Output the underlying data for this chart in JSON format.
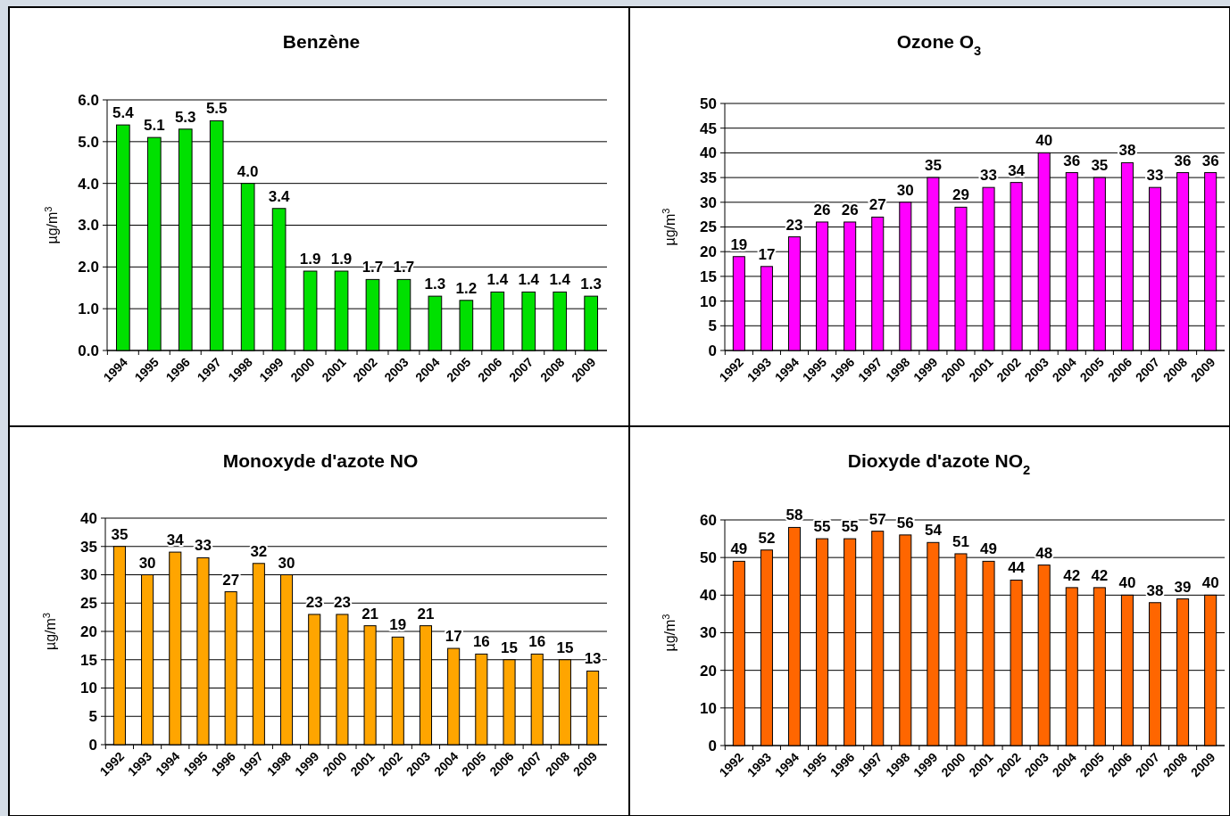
{
  "chart_data": [
    {
      "type": "bar",
      "title": "Benzène",
      "ylabel": "µg/m$^{3}$",
      "categories": [
        "1994",
        "1995",
        "1996",
        "1997",
        "1998",
        "1999",
        "2000",
        "2001",
        "2002",
        "2003",
        "2004",
        "2005",
        "2006",
        "2007",
        "2008",
        "2009"
      ],
      "values": [
        5.4,
        5.1,
        5.3,
        5.5,
        4.0,
        3.4,
        1.9,
        1.9,
        1.7,
        1.7,
        1.3,
        1.2,
        1.4,
        1.4,
        1.4,
        1.3
      ],
      "value_labels": [
        "5.4",
        "5.1",
        "5.3",
        "5.5",
        "4.0",
        "3.4",
        "1.9",
        "1.9",
        "1.7",
        "1.7",
        "1.3",
        "1.2",
        "1.4",
        "1.4",
        "1.4",
        "1.3"
      ],
      "color": "#00e000",
      "ylim": [
        0,
        6
      ],
      "yticks": [
        {
          "value": 0,
          "label": "0.0"
        },
        {
          "value": 1,
          "label": "1.0"
        },
        {
          "value": 2,
          "label": "2.0"
        },
        {
          "value": 3,
          "label": "3.0"
        },
        {
          "value": 4,
          "label": "4.0"
        },
        {
          "value": 5,
          "label": "5.0"
        },
        {
          "value": 6,
          "label": "6.0"
        }
      ],
      "grid": "y"
    },
    {
      "type": "bar",
      "title": "Ozone O$_{3}$",
      "ylabel": "µg/m$^{3}$",
      "categories": [
        "1992",
        "1993",
        "1994",
        "1995",
        "1996",
        "1997",
        "1998",
        "1999",
        "2000",
        "2001",
        "2002",
        "2003",
        "2004",
        "2005",
        "2006",
        "2007",
        "2008",
        "2009"
      ],
      "values": [
        19,
        17,
        23,
        26,
        26,
        27,
        30,
        35,
        29,
        33,
        34,
        40,
        36,
        35,
        38,
        33,
        36,
        36
      ],
      "data_labels": true,
      "color": "#ff00ff",
      "ylim": [
        0,
        50
      ],
      "yticks": [
        0,
        5,
        10,
        15,
        20,
        25,
        30,
        35,
        40,
        45,
        50
      ],
      "grid": "y"
    },
    {
      "type": "bar",
      "title": "Monoxyde d'azote NO",
      "ylabel": "µg/m$^{3}$",
      "categories": [
        "1992",
        "1993",
        "1994",
        "1995",
        "1996",
        "1997",
        "1998",
        "1999",
        "2000",
        "2001",
        "2002",
        "2003",
        "2004",
        "2005",
        "2006",
        "2007",
        "2008",
        "2009"
      ],
      "values": [
        35,
        30,
        34,
        33,
        27,
        32,
        30,
        23,
        23,
        21,
        19,
        21,
        17,
        16,
        15,
        16,
        15,
        13
      ],
      "data_labels": true,
      "color": "#ffa500",
      "ylim": [
        0,
        40
      ],
      "yticks": [
        0,
        5,
        10,
        15,
        20,
        25,
        30,
        35,
        40
      ],
      "grid": "y"
    },
    {
      "type": "bar",
      "title": "Dioxyde d'azote NO$_{2}$",
      "ylabel": "µg/m$^{3}$",
      "categories": [
        "1992",
        "1993",
        "1994",
        "1995",
        "1996",
        "1997",
        "1998",
        "1999",
        "2000",
        "2001",
        "2002",
        "2003",
        "2004",
        "2005",
        "2006",
        "2007",
        "2008",
        "2009"
      ],
      "values": [
        49,
        52,
        58,
        55,
        55,
        57,
        56,
        54,
        51,
        49,
        44,
        48,
        42,
        42,
        40,
        38,
        39,
        40
      ],
      "data_labels": true,
      "color": "#ff6600",
      "ylim": [
        0,
        60
      ],
      "yticks": [
        0,
        10,
        20,
        30,
        40,
        50,
        60
      ],
      "grid": "y"
    }
  ]
}
